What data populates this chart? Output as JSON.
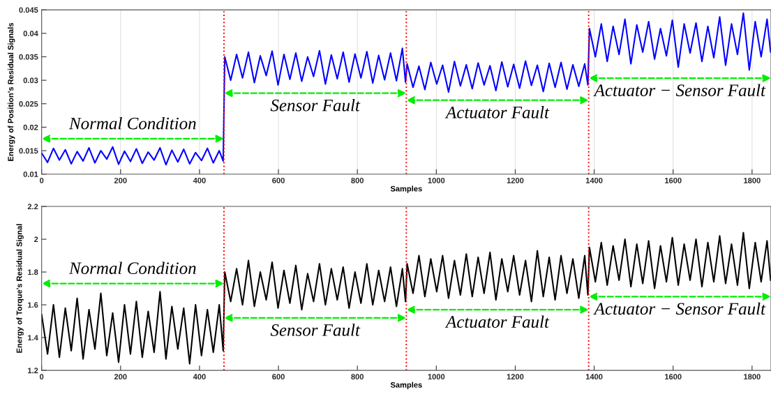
{
  "chart_data": [
    {
      "type": "line",
      "xlabel": "Samples",
      "ylabel": "Energy of Position's Residual Signals",
      "x": [
        0,
        15,
        30,
        45,
        60,
        75,
        90,
        105,
        120,
        135,
        150,
        165,
        180,
        195,
        210,
        225,
        240,
        255,
        270,
        285,
        300,
        315,
        330,
        345,
        360,
        375,
        390,
        405,
        420,
        435,
        450,
        460,
        464,
        479,
        494,
        509,
        524,
        539,
        554,
        569,
        584,
        599,
        614,
        629,
        644,
        659,
        674,
        689,
        704,
        719,
        734,
        749,
        764,
        779,
        794,
        809,
        824,
        839,
        854,
        869,
        884,
        899,
        914,
        922,
        926,
        941,
        956,
        971,
        986,
        1001,
        1016,
        1031,
        1046,
        1061,
        1076,
        1091,
        1106,
        1121,
        1136,
        1151,
        1166,
        1181,
        1196,
        1211,
        1226,
        1241,
        1256,
        1271,
        1286,
        1301,
        1316,
        1331,
        1346,
        1361,
        1376,
        1384,
        1388,
        1403,
        1418,
        1433,
        1448,
        1463,
        1478,
        1493,
        1508,
        1523,
        1538,
        1553,
        1568,
        1583,
        1598,
        1613,
        1628,
        1643,
        1658,
        1673,
        1688,
        1703,
        1718,
        1733,
        1748,
        1763,
        1778,
        1793,
        1808,
        1823,
        1838,
        1847
      ],
      "series": [
        {
          "color": "#0000ff",
          "values": [
            0.0145,
            0.0125,
            0.0155,
            0.013,
            0.0152,
            0.0122,
            0.0148,
            0.0128,
            0.0156,
            0.0124,
            0.015,
            0.0132,
            0.0158,
            0.0121,
            0.0149,
            0.0127,
            0.0154,
            0.0123,
            0.0147,
            0.013,
            0.0156,
            0.012,
            0.0151,
            0.0126,
            0.0153,
            0.0122,
            0.0146,
            0.0129,
            0.0155,
            0.0124,
            0.015,
            0.0128,
            0.035,
            0.03,
            0.0355,
            0.0305,
            0.036,
            0.0295,
            0.0352,
            0.031,
            0.0362,
            0.029,
            0.0355,
            0.0302,
            0.0358,
            0.0298,
            0.035,
            0.0308,
            0.0363,
            0.0292,
            0.0354,
            0.0303,
            0.036,
            0.0296,
            0.0356,
            0.0305,
            0.0361,
            0.0294,
            0.0353,
            0.0301,
            0.0358,
            0.0299,
            0.0368,
            0.0296,
            0.0335,
            0.0285,
            0.033,
            0.028,
            0.0338,
            0.0292,
            0.0332,
            0.0275,
            0.034,
            0.0288,
            0.0333,
            0.0282,
            0.0337,
            0.029,
            0.0331,
            0.0278,
            0.0339,
            0.0286,
            0.0334,
            0.0283,
            0.0341,
            0.0289,
            0.0332,
            0.0276,
            0.0336,
            0.0285,
            0.0338,
            0.0281,
            0.0333,
            0.0287,
            0.0335,
            0.029,
            0.041,
            0.035,
            0.042,
            0.034,
            0.0415,
            0.0355,
            0.043,
            0.0335,
            0.0418,
            0.036,
            0.0425,
            0.0345,
            0.041,
            0.0352,
            0.0428,
            0.0328,
            0.042,
            0.0358,
            0.0422,
            0.034,
            0.0415,
            0.0348,
            0.0435,
            0.0332,
            0.042,
            0.0355,
            0.0443,
            0.0322,
            0.0425,
            0.035,
            0.043,
            0.036
          ]
        }
      ],
      "xlim": [
        0,
        1848
      ],
      "xticks": [
        0,
        200,
        400,
        600,
        800,
        1000,
        1200,
        1400,
        1600,
        1800
      ],
      "ylim": [
        0.01,
        0.045
      ],
      "yticks": [
        0.01,
        0.015,
        0.02,
        0.025,
        0.03,
        0.035,
        0.04,
        0.045
      ],
      "grid": "x",
      "legend": false,
      "ref_lines": [
        {
          "axis": "x",
          "value": 462,
          "color": "#ff0000",
          "line_style": "dotted"
        },
        {
          "axis": "x",
          "value": 924,
          "color": "#ff0000",
          "line_style": "dotted"
        },
        {
          "axis": "x",
          "value": 1386,
          "color": "#ff0000",
          "line_style": "dotted"
        }
      ],
      "annotations": [
        "Normal Condition",
        "Sensor Fault",
        "Actuator Fault",
        "Actuator − Sensor Fault"
      ]
    },
    {
      "type": "line",
      "xlabel": "Samples",
      "ylabel": "Energy of Torque's Residual Signal",
      "x": [
        0,
        15,
        30,
        45,
        60,
        75,
        90,
        105,
        120,
        135,
        150,
        165,
        180,
        195,
        210,
        225,
        240,
        255,
        270,
        285,
        300,
        315,
        330,
        345,
        360,
        375,
        390,
        405,
        420,
        435,
        450,
        460,
        464,
        479,
        494,
        509,
        524,
        539,
        554,
        569,
        584,
        599,
        614,
        629,
        644,
        659,
        674,
        689,
        704,
        719,
        734,
        749,
        764,
        779,
        794,
        809,
        824,
        839,
        854,
        869,
        884,
        899,
        914,
        922,
        926,
        941,
        956,
        971,
        986,
        1001,
        1016,
        1031,
        1046,
        1061,
        1076,
        1091,
        1106,
        1121,
        1136,
        1151,
        1166,
        1181,
        1196,
        1211,
        1226,
        1241,
        1256,
        1271,
        1286,
        1301,
        1316,
        1331,
        1346,
        1361,
        1376,
        1384,
        1388,
        1403,
        1418,
        1433,
        1448,
        1463,
        1478,
        1493,
        1508,
        1523,
        1538,
        1553,
        1568,
        1583,
        1598,
        1613,
        1628,
        1643,
        1658,
        1673,
        1688,
        1703,
        1718,
        1733,
        1748,
        1763,
        1778,
        1793,
        1808,
        1823,
        1838,
        1847
      ],
      "series": [
        {
          "color": "#000000",
          "values": [
            1.54,
            1.3,
            1.6,
            1.28,
            1.58,
            1.32,
            1.64,
            1.27,
            1.57,
            1.33,
            1.67,
            1.29,
            1.55,
            1.25,
            1.6,
            1.3,
            1.62,
            1.28,
            1.56,
            1.31,
            1.68,
            1.27,
            1.59,
            1.33,
            1.58,
            1.24,
            1.6,
            1.29,
            1.57,
            1.31,
            1.6,
            1.32,
            1.8,
            1.62,
            1.82,
            1.6,
            1.87,
            1.59,
            1.8,
            1.63,
            1.86,
            1.58,
            1.81,
            1.61,
            1.84,
            1.57,
            1.79,
            1.62,
            1.85,
            1.6,
            1.82,
            1.63,
            1.83,
            1.58,
            1.8,
            1.61,
            1.85,
            1.6,
            1.81,
            1.62,
            1.83,
            1.59,
            1.82,
            1.62,
            1.85,
            1.67,
            1.9,
            1.65,
            1.88,
            1.68,
            1.9,
            1.64,
            1.87,
            1.66,
            1.91,
            1.65,
            1.89,
            1.67,
            1.92,
            1.63,
            1.88,
            1.68,
            1.9,
            1.66,
            1.87,
            1.62,
            1.93,
            1.65,
            1.89,
            1.63,
            1.9,
            1.67,
            1.88,
            1.64,
            1.9,
            1.66,
            1.95,
            1.74,
            1.98,
            1.72,
            1.96,
            1.75,
            2.0,
            1.71,
            1.97,
            1.73,
            1.99,
            1.7,
            1.96,
            1.74,
            2.01,
            1.72,
            1.97,
            1.75,
            2.0,
            1.71,
            1.98,
            1.74,
            2.02,
            1.73,
            1.97,
            1.72,
            2.04,
            1.7,
            1.98,
            1.74,
            1.99,
            1.75
          ]
        }
      ],
      "xlim": [
        0,
        1848
      ],
      "xticks": [
        0,
        200,
        400,
        600,
        800,
        1000,
        1200,
        1400,
        1600,
        1800
      ],
      "ylim": [
        1.2,
        2.2
      ],
      "yticks": [
        1.2,
        1.4,
        1.6,
        1.8,
        2,
        2.2
      ],
      "grid": false,
      "legend": false,
      "ref_lines": [
        {
          "axis": "x",
          "value": 462,
          "color": "#ff0000",
          "line_style": "dotted"
        },
        {
          "axis": "x",
          "value": 924,
          "color": "#ff0000",
          "line_style": "dotted"
        },
        {
          "axis": "x",
          "value": 1386,
          "color": "#ff0000",
          "line_style": "dotted"
        }
      ],
      "annotations": [
        "Normal Condition",
        "Sensor Fault",
        "Actuator Fault",
        "Actuator − Sensor Fault"
      ]
    }
  ]
}
